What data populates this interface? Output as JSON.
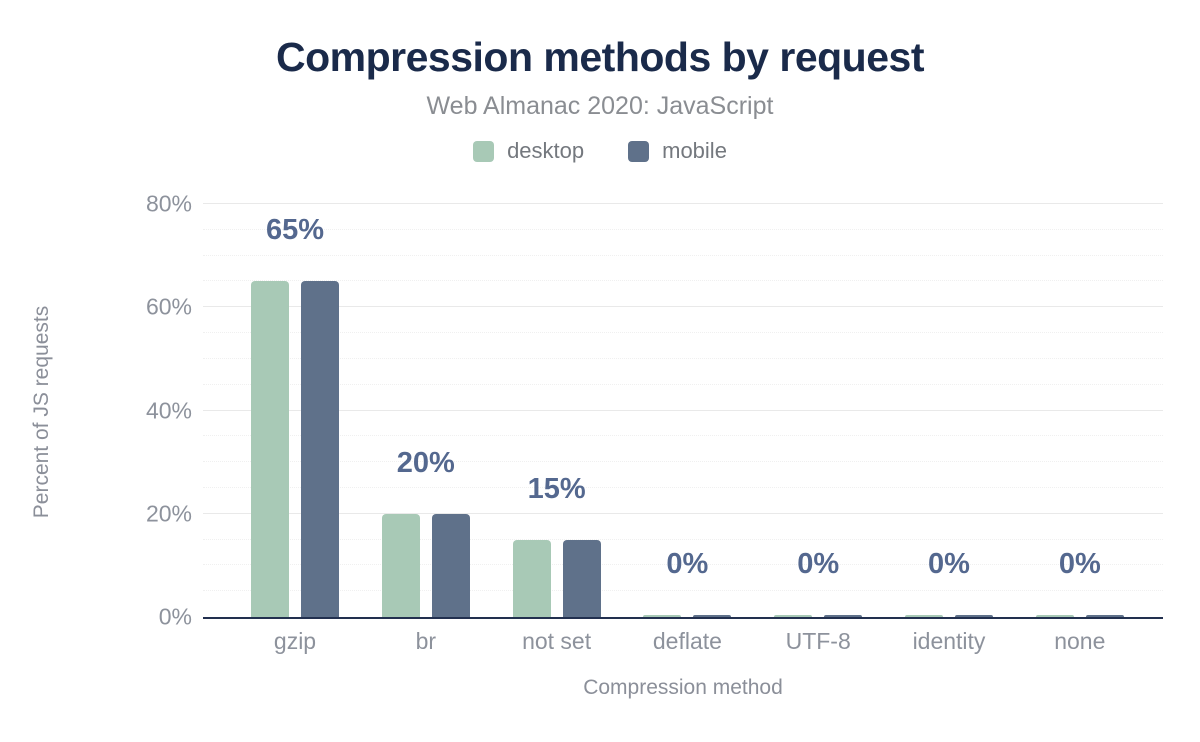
{
  "header": {
    "title": "Compression methods by request",
    "subtitle": "Web Almanac 2020: JavaScript"
  },
  "colors": {
    "title": "#1a2a4a",
    "subtitle": "#8a8d92",
    "legend_label": "#74787e",
    "tick_label": "#8d929c",
    "axis_title": "#8b8f99",
    "data_label": "#54688f",
    "axis_line": "#22304f",
    "grid_major": "#e9e9e9",
    "grid_minor": "#f0f0f0",
    "desktop_series": "#a8c9b6",
    "mobile_series": "#5f718a"
  },
  "chart_data": {
    "type": "bar",
    "title": "Compression methods by request",
    "subtitle": "Web Almanac 2020: JavaScript",
    "categories": [
      "gzip",
      "br",
      "not set",
      "deflate",
      "UTF-8",
      "identity",
      "none"
    ],
    "series": [
      {
        "name": "desktop",
        "color": "#a8c9b6",
        "values": [
          65,
          20,
          15,
          0,
          0,
          0,
          0
        ]
      },
      {
        "name": "mobile",
        "color": "#5f718a",
        "values": [
          65,
          20,
          15,
          0,
          0,
          0,
          0
        ]
      }
    ],
    "data_labels": [
      "65%",
      "20%",
      "15%",
      "0%",
      "0%",
      "0%",
      "0%"
    ],
    "xlabel": "Compression method",
    "ylabel": "Percent of JS requests",
    "y_ticks": [
      {
        "label": "0%",
        "value": 0
      },
      {
        "label": "20%",
        "value": 20
      },
      {
        "label": "40%",
        "value": 40
      },
      {
        "label": "60%",
        "value": 60
      },
      {
        "label": "80%",
        "value": 80
      }
    ],
    "ylim": [
      0,
      80
    ],
    "grid": {
      "major_step": 20,
      "minor_step": 5
    },
    "legend_position": "top"
  }
}
